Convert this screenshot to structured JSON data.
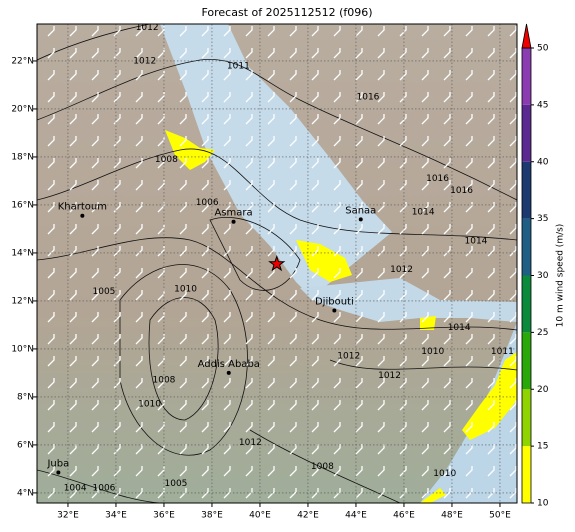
{
  "title": "Forecast of 2025112512 (f096)",
  "map": {
    "lon_range": [
      30.71,
      50.71
    ],
    "lat_range": [
      3.58,
      23.54
    ],
    "lon_ticks": [
      {
        "value": 32,
        "label": "32°E"
      },
      {
        "value": 34,
        "label": "34°E"
      },
      {
        "value": 36,
        "label": "36°E"
      },
      {
        "value": 38,
        "label": "38°E"
      },
      {
        "value": 40,
        "label": "40°E"
      },
      {
        "value": 42,
        "label": "42°E"
      },
      {
        "value": 44,
        "label": "44°E"
      },
      {
        "value": 46,
        "label": "46°E"
      },
      {
        "value": 48,
        "label": "48°E"
      },
      {
        "value": 50,
        "label": "50°E"
      }
    ],
    "lat_ticks": [
      {
        "value": 4,
        "label": "4°N"
      },
      {
        "value": 6,
        "label": "6°N"
      },
      {
        "value": 8,
        "label": "8°N"
      },
      {
        "value": 10,
        "label": "10°N"
      },
      {
        "value": 12,
        "label": "12°N"
      },
      {
        "value": 14,
        "label": "14°N"
      },
      {
        "value": 16,
        "label": "16°N"
      },
      {
        "value": 18,
        "label": "18°N"
      },
      {
        "value": 20,
        "label": "20°N"
      },
      {
        "value": 22,
        "label": "22°N"
      }
    ],
    "cities": [
      {
        "name": "Khartoum",
        "lon": 32.6,
        "lat": 15.55
      },
      {
        "name": "Asmara",
        "lon": 38.9,
        "lat": 15.3
      },
      {
        "name": "Sanaa",
        "lon": 44.2,
        "lat": 15.4
      },
      {
        "name": "Djibouti",
        "lon": 43.1,
        "lat": 11.6
      },
      {
        "name": "Addis Ababa",
        "lon": 38.7,
        "lat": 9.0
      },
      {
        "name": "Juba",
        "lon": 31.6,
        "lat": 4.85
      }
    ],
    "marker": {
      "lon": 40.7,
      "lat": 13.54
    },
    "isobar_labels": [
      {
        "text": "1012",
        "lon": 35.3,
        "lat": 23.4
      },
      {
        "text": "1012",
        "lon": 35.2,
        "lat": 22.0
      },
      {
        "text": "1011",
        "lon": 39.1,
        "lat": 21.8
      },
      {
        "text": "1016",
        "lon": 44.5,
        "lat": 20.5
      },
      {
        "text": "1008",
        "lon": 36.1,
        "lat": 17.9
      },
      {
        "text": "1016",
        "lon": 47.4,
        "lat": 17.1
      },
      {
        "text": "1016",
        "lon": 48.4,
        "lat": 16.6
      },
      {
        "text": "1006",
        "lon": 37.8,
        "lat": 16.1
      },
      {
        "text": "1014",
        "lon": 46.8,
        "lat": 15.7
      },
      {
        "text": "1014",
        "lon": 49.0,
        "lat": 14.5
      },
      {
        "text": "1012",
        "lon": 45.9,
        "lat": 13.3
      },
      {
        "text": "1005",
        "lon": 33.5,
        "lat": 12.4
      },
      {
        "text": "1010",
        "lon": 36.9,
        "lat": 12.5
      },
      {
        "text": "1014",
        "lon": 48.3,
        "lat": 10.9
      },
      {
        "text": "1012",
        "lon": 43.7,
        "lat": 9.7
      },
      {
        "text": "1010",
        "lon": 47.2,
        "lat": 9.9
      },
      {
        "text": "1012",
        "lon": 45.4,
        "lat": 8.9
      },
      {
        "text": "1011",
        "lon": 50.1,
        "lat": 9.9
      },
      {
        "text": "1008",
        "lon": 36.0,
        "lat": 8.7
      },
      {
        "text": "1010",
        "lon": 35.4,
        "lat": 7.7
      },
      {
        "text": "1012",
        "lon": 39.6,
        "lat": 6.1
      },
      {
        "text": "1008",
        "lon": 42.6,
        "lat": 5.1
      },
      {
        "text": "1010",
        "lon": 47.7,
        "lat": 4.8
      },
      {
        "text": "1005",
        "lon": 36.5,
        "lat": 4.4
      },
      {
        "text": "1004",
        "lon": 32.3,
        "lat": 4.2
      },
      {
        "text": "1006",
        "lon": 33.5,
        "lat": 4.2
      }
    ]
  },
  "colorbar": {
    "label": "10 m wind speed (m/s)",
    "range": [
      10,
      50
    ],
    "ticks": [
      10,
      15,
      20,
      25,
      30,
      35,
      40,
      45,
      50
    ],
    "colors": [
      "#ffff00",
      "#8fd400",
      "#2aa80a",
      "#0b8a3c",
      "#1f5f85",
      "#1c3a70",
      "#5a2a90",
      "#8b3cb0"
    ],
    "extend_color": "#ee0000"
  }
}
